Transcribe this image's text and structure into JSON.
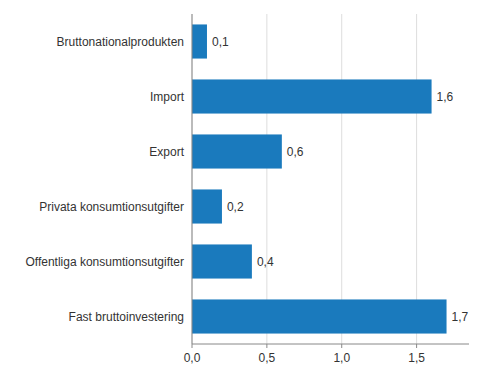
{
  "chart_data": {
    "type": "bar",
    "orientation": "horizontal",
    "categories": [
      "Fast bruttoinvestering",
      "Offentliga konsumtionsutgifter",
      "Privata konsumtionsutgifter",
      "Export",
      "Import",
      "Bruttonationalprodukten"
    ],
    "values": [
      1.7,
      0.4,
      0.2,
      0.6,
      1.6,
      0.1
    ],
    "value_labels": [
      "1,7",
      "0,4",
      "0,2",
      "0,6",
      "1,6",
      "0,1"
    ],
    "data_labels": true,
    "color": "#1a7abd",
    "xlim": [
      0,
      1.85
    ],
    "xticks": [
      {
        "value": 0.0,
        "label": "0,0"
      },
      {
        "value": 0.5,
        "label": "0,5"
      },
      {
        "value": 1.0,
        "label": "1,0"
      },
      {
        "value": 1.5,
        "label": "1,5"
      }
    ],
    "grid": true
  }
}
